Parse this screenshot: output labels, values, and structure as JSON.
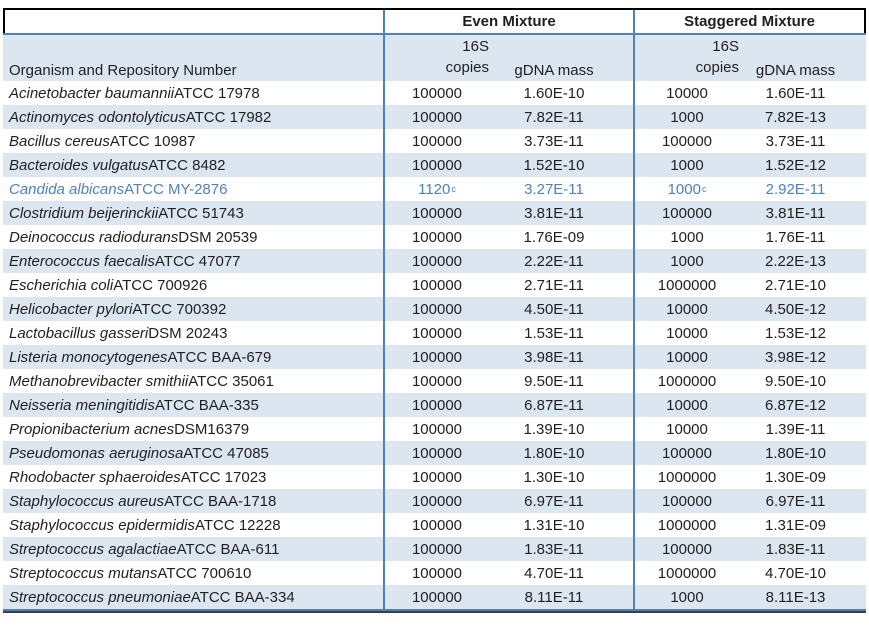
{
  "colors": {
    "stripe": "#dce6f1",
    "grid_blue": "#4f81bd",
    "top_border": "#000000",
    "bottom_dark": "#3f3f3f",
    "text": "#1f1f1f",
    "highlight": "#4f81bd"
  },
  "header": {
    "organism_col": "Organism and Repository Number",
    "groups": [
      {
        "label": "Even Mixture"
      },
      {
        "label": "Staggered Mixture"
      }
    ],
    "sub_16s": "16S",
    "sub_copies": "copies",
    "sub_gdna": "gDNA mass"
  },
  "rows": [
    {
      "species": "Acinetobacter baumannii",
      "repo": "ATCC 17978",
      "even_copies": "100000",
      "even_gdna": "1.60E-10",
      "stag_copies": "10000",
      "stag_gdna": "1.60E-11"
    },
    {
      "species": "Actinomyces odontolyticus",
      "repo": "ATCC 17982",
      "even_copies": "100000",
      "even_gdna": "7.82E-11",
      "stag_copies": "1000",
      "stag_gdna": "7.82E-13"
    },
    {
      "species": "Bacillus cereus",
      "repo": "ATCC 10987",
      "even_copies": "100000",
      "even_gdna": "3.73E-11",
      "stag_copies": "100000",
      "stag_gdna": "3.73E-11"
    },
    {
      "species": "Bacteroides vulgatus",
      "repo": "ATCC 8482",
      "even_copies": "100000",
      "even_gdna": "1.52E-10",
      "stag_copies": "1000",
      "stag_gdna": "1.52E-12"
    },
    {
      "species": "Candida albicans",
      "repo": "ATCC MY-2876",
      "even_copies": "1120",
      "even_sup": "c",
      "even_gdna": "3.27E-11",
      "stag_copies": "1000",
      "stag_sup": "c",
      "stag_gdna": "2.92E-11",
      "highlight": true
    },
    {
      "species": "Clostridium beijerinckii",
      "repo": "ATCC 51743",
      "even_copies": "100000",
      "even_gdna": "3.81E-11",
      "stag_copies": "100000",
      "stag_gdna": "3.81E-11"
    },
    {
      "species": "Deinococcus radiodurans",
      "repo": "DSM 20539",
      "even_copies": "100000",
      "even_gdna": "1.76E-09",
      "stag_copies": "1000",
      "stag_gdna": "1.76E-11"
    },
    {
      "species": "Enterococcus faecalis",
      "repo": "ATCC 47077",
      "even_copies": "100000",
      "even_gdna": "2.22E-11",
      "stag_copies": "1000",
      "stag_gdna": "2.22E-13"
    },
    {
      "species": "Escherichia coli",
      "repo": "ATCC 700926",
      "even_copies": "100000",
      "even_gdna": "2.71E-11",
      "stag_copies": "1000000",
      "stag_gdna": "2.71E-10"
    },
    {
      "species": "Helicobacter pylori",
      "repo": "ATCC 700392",
      "even_copies": "100000",
      "even_gdna": "4.50E-11",
      "stag_copies": "10000",
      "stag_gdna": "4.50E-12"
    },
    {
      "species": "Lactobacillus gasseri",
      "repo": "DSM 20243",
      "even_copies": "100000",
      "even_gdna": "1.53E-11",
      "stag_copies": "10000",
      "stag_gdna": "1.53E-12"
    },
    {
      "species": "Listeria monocytogenes",
      "repo": "ATCC BAA-679",
      "even_copies": "100000",
      "even_gdna": "3.98E-11",
      "stag_copies": "10000",
      "stag_gdna": "3.98E-12"
    },
    {
      "species": "Methanobrevibacter smithii",
      "repo": "ATCC 35061",
      "even_copies": "100000",
      "even_gdna": "9.50E-11",
      "stag_copies": "1000000",
      "stag_gdna": "9.50E-10"
    },
    {
      "species": "Neisseria meningitidis",
      "repo": "ATCC BAA-335",
      "even_copies": "100000",
      "even_gdna": "6.87E-11",
      "stag_copies": "10000",
      "stag_gdna": "6.87E-12"
    },
    {
      "species": "Propionibacterium acnes",
      "repo": "DSM16379",
      "even_copies": "100000",
      "even_gdna": "1.39E-10",
      "stag_copies": "10000",
      "stag_gdna": "1.39E-11"
    },
    {
      "species": "Pseudomonas aeruginosa",
      "repo": "ATCC 47085",
      "even_copies": "100000",
      "even_gdna": "1.80E-10",
      "stag_copies": "100000",
      "stag_gdna": "1.80E-10"
    },
    {
      "species": "Rhodobacter sphaeroides",
      "repo": "ATCC 17023",
      "even_copies": "100000",
      "even_gdna": "1.30E-10",
      "stag_copies": "1000000",
      "stag_gdna": "1.30E-09"
    },
    {
      "species": "Staphylococcus aureus",
      "repo": "ATCC BAA-1718",
      "even_copies": "100000",
      "even_gdna": "6.97E-11",
      "stag_copies": "100000",
      "stag_gdna": "6.97E-11"
    },
    {
      "species": "Staphylococcus epidermidis",
      "repo": "ATCC 12228",
      "even_copies": "100000",
      "even_gdna": "1.31E-10",
      "stag_copies": "1000000",
      "stag_gdna": "1.31E-09"
    },
    {
      "species": "Streptococcus agalactiae",
      "repo": "ATCC BAA-611",
      "even_copies": "100000",
      "even_gdna": "1.83E-11",
      "stag_copies": "100000",
      "stag_gdna": "1.83E-11"
    },
    {
      "species": "Streptococcus mutans",
      "repo": "ATCC 700610",
      "even_copies": "100000",
      "even_gdna": "4.70E-11",
      "stag_copies": "1000000",
      "stag_gdna": "4.70E-10"
    },
    {
      "species": "Streptococcus pneumoniae",
      "repo": "ATCC BAA-334",
      "even_copies": "100000",
      "even_gdna": "8.11E-11",
      "stag_copies": "1000",
      "stag_gdna": "8.11E-13"
    }
  ]
}
